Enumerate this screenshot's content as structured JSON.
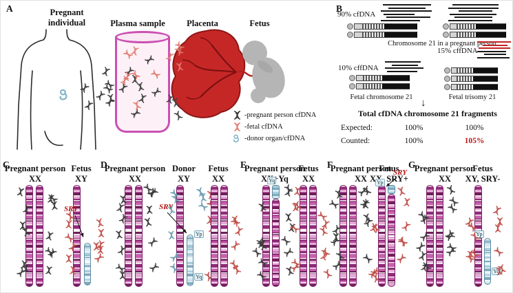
{
  "a": {
    "label": "A",
    "h_pregnant_1": "Pregnant",
    "h_pregnant_2": "individual",
    "h_plasma": "Plasma sample",
    "h_placenta": "Placenta",
    "h_fetus": "Fetus",
    "legend1": "-pregnant person cfDNA",
    "legend2": "-fetal cfDNA",
    "legend3": "-donor organ/cfDNA"
  },
  "b": {
    "label": "B",
    "pct90": "90% cfDNA",
    "cap_top": "Chromosome 21 in a pregnant person",
    "pct15": "15% cffDNA",
    "pct10": "10% cffDNA",
    "cap_fetal": "Fetal chromosome 21",
    "cap_trisomy": "Fetal trisomy 21",
    "arrow": "↓",
    "total": "Total cfDNA chromosome 21 fragments",
    "expected_label": "Expected:",
    "expected_left": "100%",
    "expected_right": "100%",
    "counted_label": "Counted:",
    "counted_left": "100%",
    "counted_right": "105%"
  },
  "c": {
    "label": "C",
    "t1": "Pregnant person",
    "s1": "XX",
    "t2": "Fetus",
    "s2": "XY",
    "sry": "SRY"
  },
  "d": {
    "label": "D",
    "t1": "Pregnant person",
    "s1": "XX",
    "t2": "Donor",
    "s2": "XY",
    "t3": "Fetus",
    "s3": "XX",
    "sry": "SRY",
    "yp": "Yp",
    "yq": "Yq"
  },
  "e": {
    "label": "E",
    "t1": "Pregnant person",
    "s1": "XX+Yq",
    "t2": "Fetus",
    "s2": "XX",
    "yq": "Yq"
  },
  "f": {
    "label": "F",
    "t1": "Pregnant person",
    "s1": "XX",
    "t2": "Fetus",
    "s2": "XX, SRY+",
    "sry": "SRY",
    "yp": "Yp"
  },
  "g": {
    "label": "G",
    "t1": "Pregnant person",
    "s1": "XX",
    "t2": "Fetus",
    "s2": "XY, SRY-",
    "yp": "Yp",
    "yq": "Yq"
  },
  "colors": {
    "sry_red": "#b31212",
    "counted_red": "#c01414",
    "chromosome_x_magenta": "#8f2a78",
    "chromosome_y_blue": "#7fa9bc",
    "placenta_red": "#c52727",
    "tube_pink": "#cb4fb2",
    "fetus_gray": "#b5b5b5",
    "fragment_red": "#c22222",
    "pregnant_cfdna": "#3a3a3a",
    "fetal_cfdna": "#c0504a",
    "donor_cfdna": "#6a9cb0"
  },
  "icons": {
    "dna-icon": "double-helix squiggle",
    "fetus-icon": "curled fetus glyph",
    "down-arrow-icon": "↓"
  }
}
